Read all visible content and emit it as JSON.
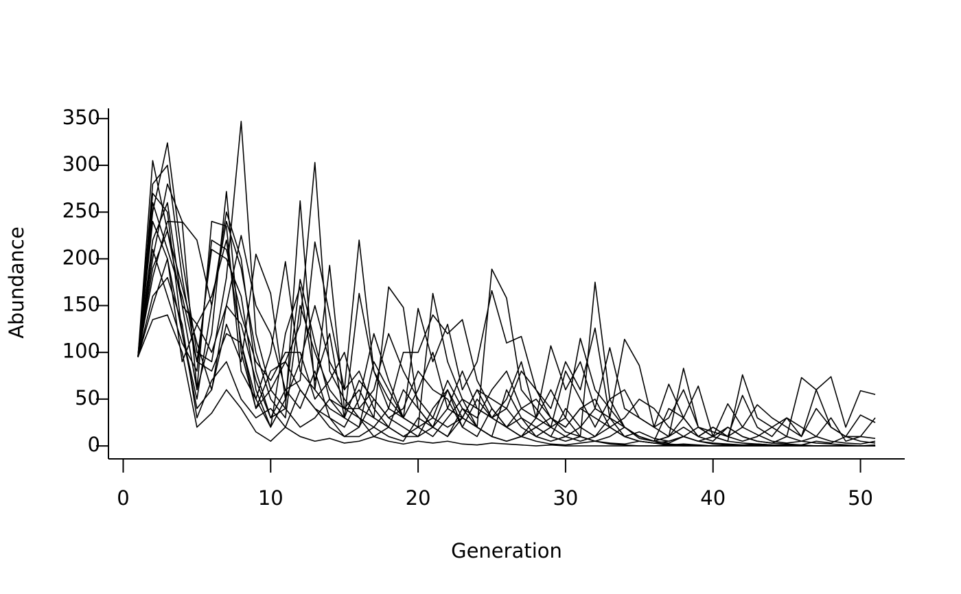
{
  "chart_data": {
    "type": "line",
    "xlabel": "Generation",
    "ylabel": "Abundance",
    "color": "#000000",
    "x": [
      1,
      2,
      3,
      4,
      5,
      6,
      7,
      8,
      9,
      10,
      11,
      12,
      13,
      14,
      15,
      16,
      17,
      18,
      19,
      20,
      21,
      22,
      23,
      24,
      25,
      26,
      27,
      28,
      29,
      30,
      31,
      32,
      33,
      34,
      35,
      36,
      37,
      38,
      39,
      40,
      41,
      42,
      43,
      44,
      45,
      46,
      47,
      48,
      49,
      50,
      51
    ],
    "xlim": [
      -1,
      53
    ],
    "xticks": [
      0,
      10,
      20,
      30,
      40,
      50
    ],
    "ylim": [
      -13.88,
      360.88
    ],
    "yticks": [
      0,
      50,
      100,
      150,
      200,
      250,
      300,
      350
    ],
    "series": [
      {
        "values": [
          95,
          305,
          230,
          150,
          60,
          120,
          272,
          100,
          40,
          60,
          90,
          130,
          303,
          80,
          50,
          30,
          20,
          40,
          30,
          20,
          10,
          30,
          50,
          20,
          10,
          5,
          10,
          20,
          10,
          5,
          10,
          5,
          3,
          2,
          5,
          3,
          1,
          2,
          1,
          0,
          0,
          1,
          0,
          0,
          0,
          0,
          0,
          0,
          0,
          0,
          0
        ]
      },
      {
        "values": [
          95,
          250,
          324,
          200,
          100,
          90,
          180,
          347,
          120,
          60,
          40,
          262,
          60,
          40,
          30,
          70,
          50,
          30,
          20,
          10,
          20,
          40,
          30,
          60,
          30,
          20,
          10,
          20,
          30,
          15,
          10,
          5,
          10,
          20,
          8,
          5,
          3,
          10,
          5,
          2,
          1,
          0,
          1,
          0,
          0,
          0,
          0,
          0,
          0,
          0,
          0
        ]
      },
      {
        "values": [
          95,
          200,
          280,
          240,
          220,
          150,
          250,
          200,
          80,
          30,
          60,
          70,
          218,
          140,
          60,
          220,
          80,
          50,
          30,
          20,
          163,
          90,
          50,
          40,
          30,
          20,
          40,
          30,
          20,
          10,
          20,
          40,
          30,
          10,
          5,
          3,
          2,
          1,
          0,
          0,
          0,
          0,
          0,
          0,
          0,
          0,
          0,
          0,
          0,
          0,
          0
        ]
      },
      {
        "values": [
          95,
          180,
          240,
          239,
          60,
          240,
          235,
          80,
          50,
          100,
          197,
          80,
          60,
          193,
          40,
          60,
          30,
          170,
          148,
          40,
          20,
          10,
          30,
          20,
          189,
          158,
          60,
          40,
          20,
          30,
          10,
          175,
          50,
          20,
          10,
          5,
          10,
          83,
          20,
          10,
          5,
          3,
          2,
          1,
          1,
          0,
          0,
          0,
          0,
          0,
          0
        ]
      },
      {
        "values": [
          95,
          150,
          200,
          120,
          40,
          60,
          130,
          90,
          205,
          163,
          50,
          178,
          110,
          50,
          30,
          163,
          80,
          40,
          100,
          100,
          140,
          120,
          135,
          70,
          40,
          20,
          10,
          30,
          60,
          30,
          115,
          60,
          40,
          20,
          10,
          5,
          40,
          30,
          64,
          10,
          5,
          76,
          30,
          20,
          10,
          73,
          60,
          20,
          10,
          5,
          3
        ]
      },
      {
        "values": [
          95,
          280,
          300,
          180,
          90,
          210,
          200,
          160,
          60,
          20,
          120,
          170,
          70,
          120,
          30,
          20,
          90,
          60,
          30,
          147,
          90,
          130,
          60,
          90,
          166,
          110,
          117,
          60,
          40,
          90,
          60,
          126,
          30,
          114,
          86,
          20,
          30,
          60,
          20,
          10,
          45,
          20,
          44,
          30,
          20,
          10,
          60,
          74,
          20,
          59,
          55
        ]
      },
      {
        "values": [
          95,
          220,
          260,
          150,
          130,
          160,
          220,
          110,
          40,
          80,
          90,
          60,
          40,
          30,
          20,
          50,
          120,
          70,
          30,
          60,
          100,
          40,
          80,
          40,
          30,
          50,
          90,
          30,
          107,
          60,
          90,
          40,
          105,
          40,
          30,
          20,
          66,
          30,
          10,
          20,
          10,
          54,
          20,
          10,
          30,
          10,
          40,
          20,
          10,
          10,
          30
        ]
      },
      {
        "values": [
          95,
          160,
          180,
          130,
          30,
          70,
          90,
          50,
          30,
          40,
          20,
          60,
          40,
          20,
          10,
          10,
          20,
          10,
          5,
          30,
          20,
          10,
          40,
          20,
          10,
          60,
          30,
          20,
          10,
          40,
          20,
          10,
          30,
          20,
          10,
          5,
          10,
          20,
          10,
          5,
          20,
          10,
          5,
          3,
          2,
          1,
          5,
          3,
          10,
          33,
          25
        ]
      },
      {
        "values": [
          95,
          135,
          140,
          100,
          20,
          35,
          60,
          40,
          15,
          5,
          20,
          10,
          5,
          8,
          3,
          5,
          10,
          5,
          2,
          5,
          3,
          5,
          2,
          1,
          3,
          2,
          1,
          0,
          1,
          0,
          0,
          0,
          0,
          0,
          0,
          0,
          0,
          0,
          0,
          0,
          0,
          0,
          0,
          0,
          0,
          0,
          0,
          0,
          0,
          0,
          0
        ]
      },
      {
        "values": [
          95,
          270,
          250,
          120,
          50,
          150,
          240,
          190,
          100,
          50,
          30,
          150,
          100,
          60,
          40,
          40,
          60,
          120,
          80,
          50,
          30,
          70,
          40,
          30,
          60,
          80,
          40,
          50,
          30,
          20,
          40,
          30,
          20,
          10,
          15,
          8,
          5,
          10,
          20,
          15,
          10,
          20,
          12,
          5,
          3,
          5,
          10,
          5,
          3,
          2,
          5
        ]
      },
      {
        "values": [
          95,
          240,
          200,
          90,
          130,
          100,
          150,
          225,
          150,
          120,
          60,
          40,
          80,
          30,
          10,
          20,
          50,
          30,
          40,
          80,
          60,
          50,
          20,
          50,
          30,
          40,
          20,
          10,
          20,
          80,
          50,
          20,
          50,
          60,
          30,
          20,
          10,
          30,
          10,
          20,
          10,
          5,
          10,
          20,
          30,
          20,
          10,
          30,
          5,
          10,
          8
        ]
      },
      {
        "values": [
          95,
          210,
          160,
          110,
          80,
          220,
          210,
          140,
          90,
          70,
          100,
          100,
          50,
          70,
          100,
          40,
          30,
          20,
          60,
          40,
          20,
          60,
          20,
          10,
          40,
          20,
          30,
          10,
          5,
          10,
          5,
          10,
          20,
          10,
          5,
          3,
          5,
          10,
          5,
          3,
          2,
          1,
          2,
          1,
          0,
          1,
          0,
          0,
          0,
          0,
          0
        ]
      },
      {
        "values": [
          95,
          190,
          230,
          170,
          110,
          60,
          150,
          130,
          70,
          30,
          40,
          20,
          30,
          50,
          40,
          30,
          10,
          20,
          10,
          20,
          30,
          20,
          30,
          60,
          50,
          40,
          80,
          60,
          30,
          20,
          40,
          50,
          20,
          30,
          50,
          40,
          20,
          10,
          5,
          10,
          20,
          10,
          5,
          3,
          10,
          5,
          3,
          2,
          1,
          0,
          1
        ]
      },
      {
        "values": [
          95,
          260,
          210,
          160,
          90,
          80,
          120,
          110,
          50,
          20,
          50,
          90,
          150,
          90,
          60,
          80,
          40,
          20,
          10,
          10,
          40,
          60,
          30,
          20,
          10,
          5,
          10,
          5,
          2,
          1,
          3,
          5,
          2,
          1,
          0,
          0,
          1,
          0,
          0,
          0,
          0,
          0,
          0,
          0,
          0,
          0,
          0,
          0,
          0,
          0,
          0
        ]
      }
    ]
  }
}
